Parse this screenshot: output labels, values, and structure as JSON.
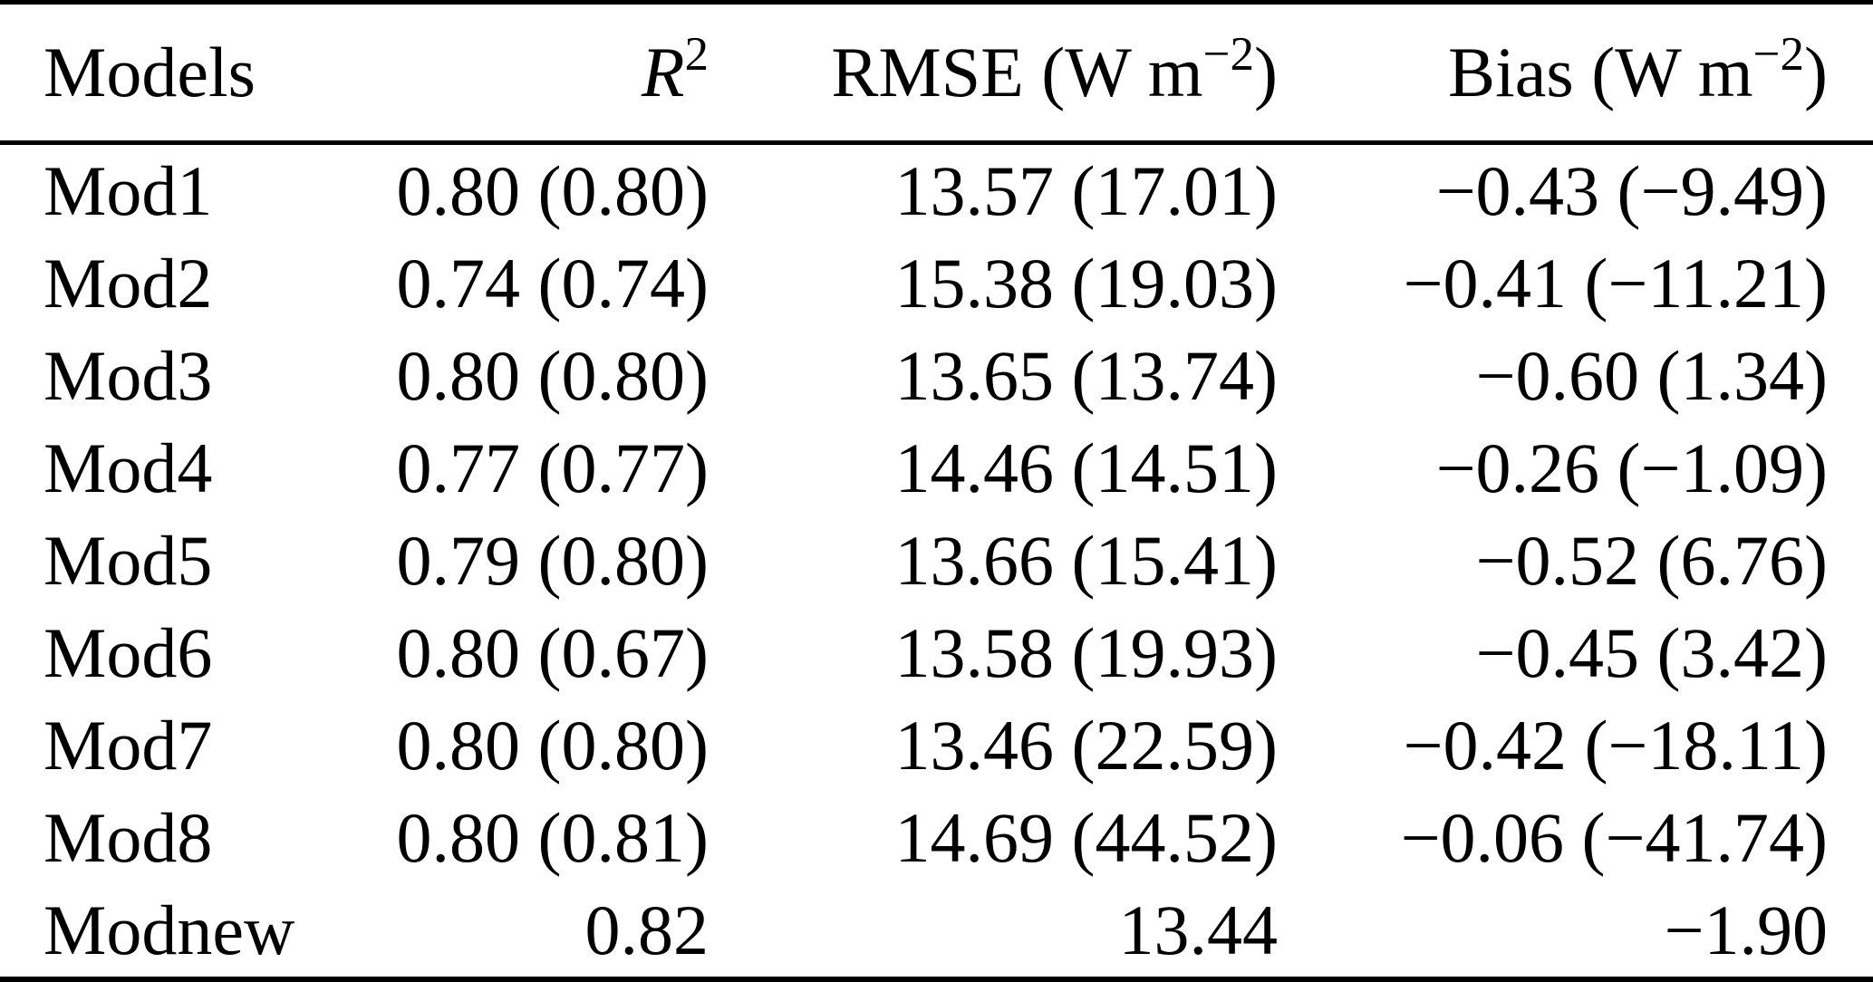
{
  "table": {
    "header": {
      "models": "Models",
      "r2_base": "R",
      "r2_sup": "2",
      "rmse_pre": "RMSE (W m",
      "rmse_sup": "−2",
      "rmse_post": ")",
      "bias_pre": "Bias (W m",
      "bias_sup": "−2",
      "bias_post": ")"
    },
    "rows": [
      {
        "model": "Mod1",
        "r2": "0.80 (0.80)",
        "rmse": "13.57 (17.01)",
        "bias": "−0.43 (−9.49)"
      },
      {
        "model": "Mod2",
        "r2": "0.74 (0.74)",
        "rmse": "15.38 (19.03)",
        "bias": "−0.41 (−11.21)"
      },
      {
        "model": "Mod3",
        "r2": "0.80 (0.80)",
        "rmse": "13.65 (13.74)",
        "bias": "−0.60 (1.34)"
      },
      {
        "model": "Mod4",
        "r2": "0.77 (0.77)",
        "rmse": "14.46 (14.51)",
        "bias": "−0.26 (−1.09)"
      },
      {
        "model": "Mod5",
        "r2": "0.79 (0.80)",
        "rmse": "13.66 (15.41)",
        "bias": "−0.52 (6.76)"
      },
      {
        "model": "Mod6",
        "r2": "0.80 (0.67)",
        "rmse": "13.58 (19.93)",
        "bias": "−0.45 (3.42)"
      },
      {
        "model": "Mod7",
        "r2": "0.80 (0.80)",
        "rmse": "13.46 (22.59)",
        "bias": "−0.42 (−18.11)"
      },
      {
        "model": "Mod8",
        "r2": "0.80 (0.81)",
        "rmse": "14.69 (44.52)",
        "bias": "−0.06 (−41.74)"
      },
      {
        "model": "Modnew",
        "r2": "0.82",
        "rmse": "13.44",
        "bias": "−1.90"
      }
    ]
  }
}
